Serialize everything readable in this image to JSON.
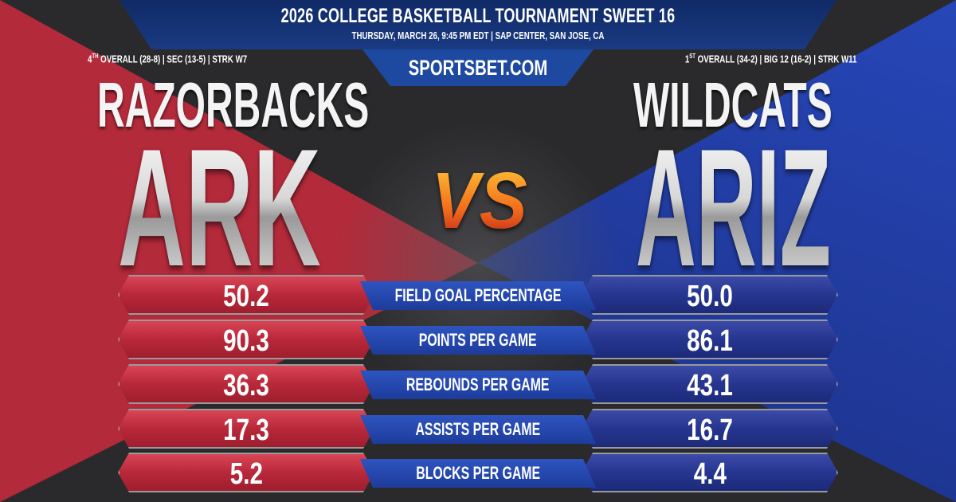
{
  "header": {
    "title": "2026 COLLEGE BASKETBALL TOURNAMENT SWEET 16",
    "subtitle": "THURSDAY, MARCH 26, 9:45 PM EDT | SAP CENTER, SAN JOSE, CA",
    "site": "SPORTSBET.COM"
  },
  "away": {
    "rank_num": "4",
    "rank_sup": "TH",
    "record": " OVERALL (28-8) | SEC (13-5) | STRK W7",
    "nickname": "RAZORBACKS",
    "abbr": "ARK",
    "color": "#b8283a"
  },
  "home": {
    "rank_num": "1",
    "rank_sup": "ST",
    "record": " OVERALL (34-2) | BIG 12 (16-2) | STRK W11",
    "nickname": "WILDCATS",
    "abbr": "ARIZ",
    "color": "#263690"
  },
  "vs": "VS",
  "stats": [
    {
      "label": "FIELD GOAL PERCENTAGE",
      "away": "50.2",
      "home": "50.0"
    },
    {
      "label": "POINTS PER GAME",
      "away": "90.3",
      "home": "86.1"
    },
    {
      "label": "REBOUNDS PER GAME",
      "away": "36.3",
      "home": "43.1"
    },
    {
      "label": "ASSISTS PER GAME",
      "away": "17.3",
      "home": "16.7"
    },
    {
      "label": "BLOCKS PER GAME",
      "away": "5.2",
      "home": "4.4"
    }
  ]
}
